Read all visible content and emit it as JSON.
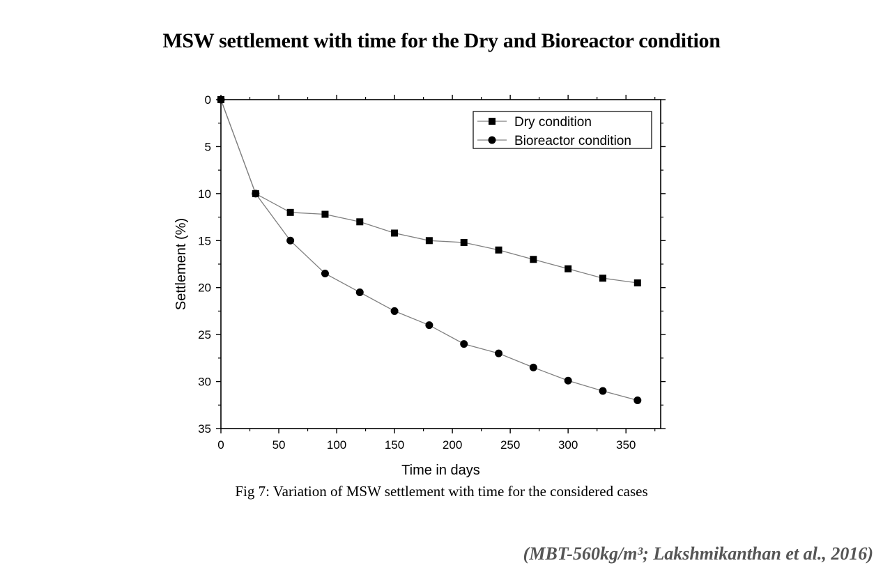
{
  "slide": {
    "title": "MSW settlement with time for the Dry and Bioreactor condition",
    "caption": "Fig 7: Variation of MSW settlement with time for the considered cases",
    "citation": "(MBT-560kg/m³; Lakshmikanthan et al., 2016)"
  },
  "chart_data": {
    "type": "line",
    "title": "",
    "xlabel": "Time in days",
    "ylabel": "Settlement (%)",
    "xlim": [
      0,
      380
    ],
    "ylim": [
      0,
      35
    ],
    "y_inverted": true,
    "x_ticks": [
      0,
      50,
      100,
      150,
      200,
      250,
      300,
      350
    ],
    "y_ticks": [
      0,
      5,
      10,
      15,
      20,
      25,
      30,
      35
    ],
    "grid": false,
    "legend_position": "top-right",
    "line_color": "#808080",
    "marker_color": "#000000",
    "series": [
      {
        "name": "Dry condition",
        "marker": "square",
        "x": [
          0,
          30,
          60,
          90,
          120,
          150,
          180,
          210,
          240,
          270,
          300,
          330,
          360
        ],
        "y": [
          0,
          10,
          12,
          12.2,
          13,
          14.2,
          15,
          15.2,
          16,
          17,
          18,
          19,
          19.5
        ]
      },
      {
        "name": "Bioreactor condition",
        "marker": "circle",
        "x": [
          0,
          30,
          60,
          90,
          120,
          150,
          180,
          210,
          240,
          270,
          300,
          330,
          360
        ],
        "y": [
          0,
          10,
          15,
          18.5,
          20.5,
          22.5,
          24,
          26,
          27,
          28.5,
          29.9,
          31,
          32
        ]
      }
    ]
  }
}
